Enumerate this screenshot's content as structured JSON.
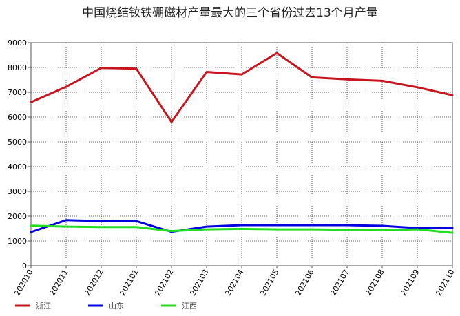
{
  "chart_data": {
    "type": "line",
    "title": "中国烧结钕铁硼磁材产量最大的三个省份过去13个月产量",
    "xlabel": "",
    "ylabel": "",
    "categories": [
      "202010",
      "202011",
      "202012",
      "202101",
      "202102",
      "202103",
      "202104",
      "202105",
      "202106",
      "202107",
      "202108",
      "202109",
      "202110"
    ],
    "ylim": [
      0,
      9000
    ],
    "yticks": [
      0,
      1000,
      2000,
      3000,
      4000,
      5000,
      6000,
      7000,
      8000,
      9000
    ],
    "grid": true,
    "legend_position": "bottom-left",
    "series": [
      {
        "name": "浙江",
        "color": "#c8151d",
        "values": [
          6600,
          7220,
          7980,
          7950,
          5800,
          7820,
          7720,
          8580,
          7600,
          7520,
          7460,
          7200,
          6880
        ]
      },
      {
        "name": "山东",
        "color": "#0000e0",
        "values": [
          1360,
          1840,
          1800,
          1800,
          1370,
          1580,
          1640,
          1640,
          1640,
          1640,
          1610,
          1520,
          1520
        ]
      },
      {
        "name": "江西",
        "color": "#22dd22",
        "values": [
          1620,
          1580,
          1560,
          1560,
          1400,
          1470,
          1490,
          1470,
          1470,
          1450,
          1440,
          1470,
          1330
        ]
      }
    ]
  }
}
